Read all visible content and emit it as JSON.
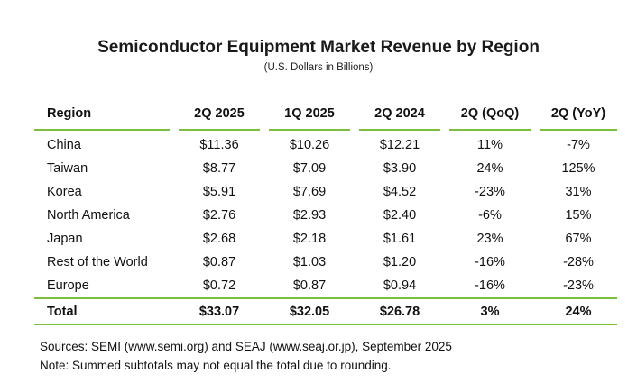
{
  "chart_data": {
    "type": "table",
    "title": "Semiconductor Equipment Market Revenue by Region",
    "subtitle": "(U.S. Dollars in Billions)",
    "columns": [
      "Region",
      "2Q 2025",
      "1Q 2025",
      "2Q 2024",
      "2Q (QoQ)",
      "2Q (YoY)"
    ],
    "rows": [
      {
        "region": "China",
        "q2_2025": "$11.36",
        "q1_2025": "$10.26",
        "q2_2024": "$12.21",
        "qoq": "11%",
        "yoy": "-7%"
      },
      {
        "region": "Taiwan",
        "q2_2025": "$8.77",
        "q1_2025": "$7.09",
        "q2_2024": "$3.90",
        "qoq": "24%",
        "yoy": "125%"
      },
      {
        "region": "Korea",
        "q2_2025": "$5.91",
        "q1_2025": "$7.69",
        "q2_2024": "$4.52",
        "qoq": "-23%",
        "yoy": "31%"
      },
      {
        "region": "North America",
        "q2_2025": "$2.76",
        "q1_2025": "$2.93",
        "q2_2024": "$2.40",
        "qoq": "-6%",
        "yoy": "15%"
      },
      {
        "region": "Japan",
        "q2_2025": "$2.68",
        "q1_2025": "$2.18",
        "q2_2024": "$1.61",
        "qoq": "23%",
        "yoy": "67%"
      },
      {
        "region": "Rest of the World",
        "q2_2025": "$0.87",
        "q1_2025": "$1.03",
        "q2_2024": "$1.20",
        "qoq": "-16%",
        "yoy": "-28%"
      },
      {
        "region": "Europe",
        "q2_2025": "$0.72",
        "q1_2025": "$0.87",
        "q2_2024": "$0.94",
        "qoq": "-16%",
        "yoy": "-23%"
      }
    ],
    "total": {
      "region": "Total",
      "q2_2025": "$33.07",
      "q1_2025": "$32.05",
      "q2_2024": "$26.78",
      "qoq": "3%",
      "yoy": "24%"
    }
  },
  "notes": {
    "sources": "Sources: SEMI (www.semi.org) and SEAJ (www.seaj.or.jp), September 2025",
    "note": "Note: Summed subtotals may not equal the total due to rounding."
  },
  "colors": {
    "rule_green": "#7bbf3a",
    "text": "#111111"
  }
}
